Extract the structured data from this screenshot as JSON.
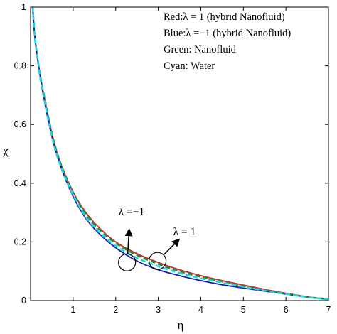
{
  "chart_data": {
    "type": "line",
    "xlabel": "η",
    "ylabel": "χ",
    "xlim": [
      0,
      7
    ],
    "ylim": [
      0,
      1
    ],
    "xticks": [
      "1",
      "2",
      "3",
      "4",
      "5",
      "6",
      "7"
    ],
    "yticks": [
      "0",
      "0.2",
      "0.4",
      "0.6",
      "0.8",
      "1"
    ],
    "legend": {
      "placement": "top-right",
      "entries": [
        "Red:λ = 1 (hybrid Nanofluid)",
        "Blue:λ =−1 (hybrid Nanofluid)",
        "Green: Nanofluid",
        "Cyan: Water"
      ]
    },
    "annotations": [
      {
        "text": "λ =−1",
        "at_x": 2.3,
        "at_y": 0.135
      },
      {
        "text": "λ = 1",
        "at_x": 2.9,
        "at_y": 0.14
      }
    ],
    "series": [
      {
        "color": "#c62828",
        "style": "solid",
        "x": [
          0.05,
          0.1,
          0.2,
          0.3,
          0.5,
          0.7,
          1.0,
          1.3,
          1.6,
          2.0,
          2.5,
          3.0,
          3.5,
          4.0,
          4.5,
          5.0,
          5.5,
          6.0,
          6.5,
          7.0
        ],
        "y": [
          1.0,
          0.9,
          0.79,
          0.71,
          0.57,
          0.47,
          0.37,
          0.3,
          0.25,
          0.2,
          0.16,
          0.13,
          0.105,
          0.085,
          0.068,
          0.053,
          0.038,
          0.025,
          0.013,
          0.005
        ]
      },
      {
        "color": "#1a1aa8",
        "style": "solid",
        "x": [
          0.05,
          0.1,
          0.2,
          0.3,
          0.5,
          0.7,
          1.0,
          1.3,
          1.6,
          2.0,
          2.5,
          3.0,
          3.5,
          4.0,
          4.5,
          5.0,
          5.5,
          6.0,
          6.5,
          7.0
        ],
        "y": [
          1.0,
          0.9,
          0.79,
          0.7,
          0.56,
          0.46,
          0.355,
          0.28,
          0.23,
          0.18,
          0.135,
          0.105,
          0.085,
          0.068,
          0.054,
          0.043,
          0.032,
          0.022,
          0.012,
          0.004
        ]
      },
      {
        "color": "#2e8b3a",
        "style": "dashed",
        "x": [
          0.05,
          0.1,
          0.2,
          0.3,
          0.5,
          0.7,
          1.0,
          1.3,
          1.6,
          2.0,
          2.5,
          3.0,
          3.5,
          4.0,
          4.5,
          5.0,
          5.5,
          6.0,
          6.5,
          7.0
        ],
        "y": [
          1.0,
          0.9,
          0.79,
          0.71,
          0.57,
          0.47,
          0.368,
          0.295,
          0.245,
          0.196,
          0.155,
          0.125,
          0.1,
          0.081,
          0.065,
          0.05,
          0.036,
          0.024,
          0.012,
          0.005
        ]
      },
      {
        "color": "#22d3e0",
        "style": "dashed",
        "x": [
          0.05,
          0.1,
          0.2,
          0.3,
          0.5,
          0.7,
          1.0,
          1.3,
          1.6,
          2.0,
          2.5,
          3.0,
          3.5,
          4.0,
          4.5,
          5.0,
          5.5,
          6.0,
          6.5,
          7.0
        ],
        "y": [
          1.0,
          0.9,
          0.785,
          0.7,
          0.56,
          0.46,
          0.36,
          0.285,
          0.235,
          0.187,
          0.145,
          0.117,
          0.094,
          0.076,
          0.061,
          0.047,
          0.034,
          0.023,
          0.012,
          0.004
        ]
      }
    ]
  }
}
